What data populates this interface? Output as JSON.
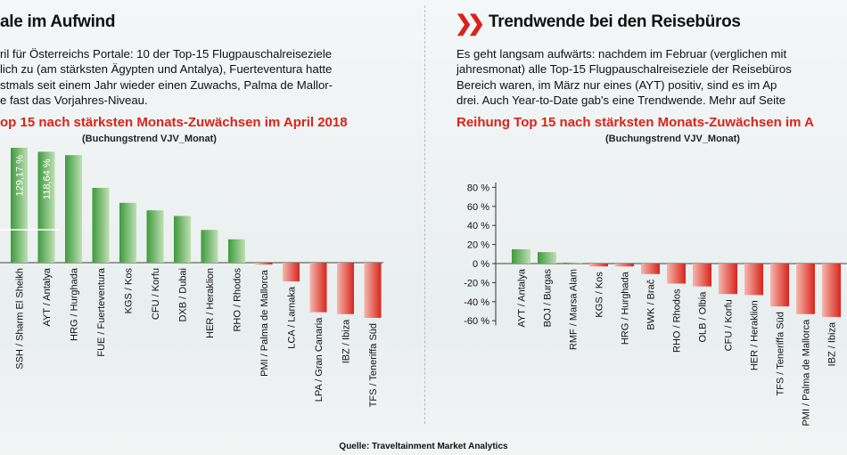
{
  "left": {
    "title": "ale im Aufwind",
    "paragraph": [
      "ril für Österreichs Portale: 10 der Top-15 Flugpauschalreiseziele",
      "lich zu (am stärksten Ägypten und Antalya), Fuerteventura hatte",
      "stmals seit einem Jahr wieder einen Zuwachs, Palma de Mallor-",
      "e fast das Vorjahres-Niveau."
    ],
    "chart_title": "op 15 nach stärksten Monats-Zuwächsen im April 2018",
    "chart_subtitle": "(Buchungstrend VJV_Monat)"
  },
  "right": {
    "title": "Trendwende bei den Reisebüros",
    "paragraph": [
      "Es geht langsam aufwärts: nachdem im Februar (verglichen mit",
      "jahresmonat) alle Top-15 Flugpauschalreiseziele der Reisebüros",
      "Bereich waren, im März nur eines (AYT) positiv, sind es im Ap",
      "drei. Auch Year-to-Date gab's eine Trendwende. Mehr auf Seite"
    ],
    "chart_title": "Reihung Top 15 nach stärksten Monats-Zuwächsen im A",
    "chart_subtitle": "(Buchungstrend VJV_Monat)"
  },
  "source": "Quelle: Traveltainment Market Analytics",
  "colors": {
    "accent": "#d9241b",
    "positive": "#3e9a3c",
    "negative": "#d9241b"
  },
  "chart_data": [
    {
      "type": "bar",
      "categories": [
        "SSH / Sharm El Sheikh",
        "AYT / Antalya",
        "HRG / Hurghada",
        "FUE / Fuerteventura",
        "KGS / Kos",
        "CFU / Korfu",
        "DXB / Dubai",
        "HER / Heraklion",
        "RHO / Rhodos",
        "PMI / Palma de Mallorca",
        "LCA / Larnaka",
        "LPA / Gran Canaria",
        "IBZ / Ibiza",
        "TFS / Teneriffa Süd"
      ],
      "values": [
        129.17,
        118.64,
        115,
        80,
        64,
        56,
        50,
        35,
        25,
        -2,
        -20,
        -53,
        -55,
        -59
      ],
      "data_labels": [
        "129,17 %",
        "118,64 %",
        "",
        "",
        "",
        "",
        "",
        "",
        "",
        "",
        "",
        "",
        "",
        ""
      ],
      "ylim": [
        -65,
        135
      ]
    },
    {
      "type": "bar",
      "categories": [
        "AYT / Antalya",
        "BOJ / Burgas",
        "RMF / Marsa Alam",
        "KGS / Kos",
        "HRG / Hurghada",
        "BWK / Brač",
        "RHO / Rhodos",
        "OLB / Olbia",
        "CFU / Korfu",
        "HER / Heraklion",
        "TFS / Teneriffa Süd",
        "PMI / Palma de Mallorca",
        "IBZ / Ibiza"
      ],
      "values": [
        15,
        12,
        1,
        -3,
        -3,
        -11,
        -21,
        -24,
        -32,
        -33,
        -45,
        -53,
        -56
      ],
      "yticks": [
        80,
        60,
        40,
        20,
        0,
        -20,
        -40,
        -60
      ],
      "ytick_labels": [
        "80 %",
        "60 %",
        "40 %",
        "20 %",
        "0 %",
        "-20 %",
        "-40 %",
        "-60 %"
      ],
      "ylim": [
        -65,
        85
      ]
    }
  ]
}
